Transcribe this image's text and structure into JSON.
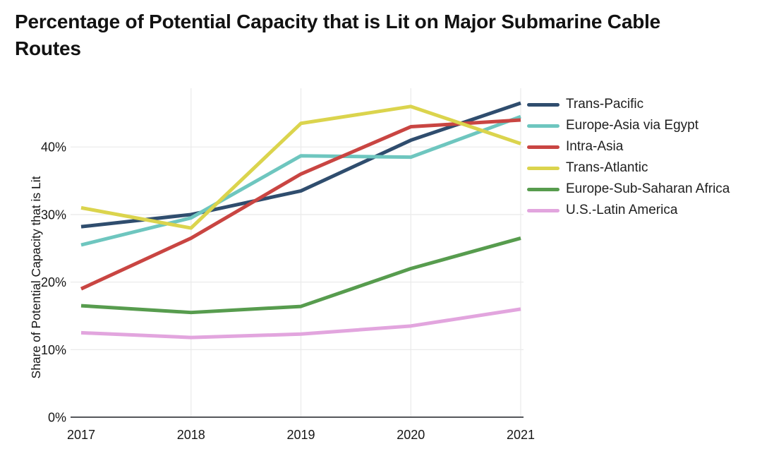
{
  "title": "Percentage of Potential Capacity that is Lit on Major Submarine Cable Routes",
  "chart_data": {
    "type": "line",
    "x": [
      2017,
      2018,
      2019,
      2020,
      2021
    ],
    "x_tick_labels": [
      "2017",
      "2018",
      "2019",
      "2020",
      "2021"
    ],
    "xlabel": "",
    "ylabel": "Share of Potential Capacity that is Lit",
    "y_tick_labels": [
      "0%",
      "10%",
      "20%",
      "30%",
      "40%"
    ],
    "y_tick_values": [
      0,
      10,
      20,
      30,
      40
    ],
    "ylim": [
      0,
      48.7
    ],
    "grid": true,
    "legend_position": "right",
    "series": [
      {
        "name": "Trans-Pacific",
        "color": "#2F4D6E",
        "values": [
          28.2,
          30,
          33.5,
          41,
          46.5
        ]
      },
      {
        "name": "Europe-Asia via Egypt",
        "color": "#6EC6BF",
        "values": [
          25.5,
          29.5,
          38.7,
          38.5,
          44.5
        ]
      },
      {
        "name": "Intra-Asia",
        "color": "#C94542",
        "values": [
          19,
          26.5,
          36,
          43,
          44
        ]
      },
      {
        "name": "Trans-Atlantic",
        "color": "#DBD44D",
        "values": [
          31,
          28,
          43.5,
          46,
          40.5
        ]
      },
      {
        "name": "Europe-Sub-Saharan Africa",
        "color": "#579C4E",
        "values": [
          16.5,
          15.5,
          16.4,
          22,
          26.5
        ]
      },
      {
        "name": "U.S.-Latin America",
        "color": "#E2A5DE",
        "values": [
          12.5,
          11.8,
          12.3,
          13.5,
          16
        ]
      }
    ]
  },
  "colors": {
    "background": "#FFFFFF",
    "grid": "#EBEBEB",
    "axis_line": "#55575B",
    "tick_text": "#161616",
    "title_text": "#121212"
  }
}
